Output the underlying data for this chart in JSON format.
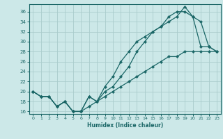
{
  "xlabel": "Humidex (Indice chaleur)",
  "bg_color": "#cce8e8",
  "grid_color": "#aacccc",
  "line_color": "#1a6666",
  "xlim": [
    -0.5,
    23.5
  ],
  "ylim": [
    15.5,
    37.5
  ],
  "yticks": [
    16,
    18,
    20,
    22,
    24,
    26,
    28,
    30,
    32,
    34,
    36
  ],
  "xticks": [
    0,
    1,
    2,
    3,
    4,
    5,
    6,
    7,
    8,
    9,
    10,
    11,
    12,
    13,
    14,
    15,
    16,
    17,
    18,
    19,
    20,
    21,
    22,
    23
  ],
  "line1_x": [
    0,
    1,
    2,
    3,
    4,
    5,
    6,
    7,
    8,
    9,
    10,
    11,
    12,
    13,
    14,
    15,
    16,
    17,
    18,
    19,
    20,
    21,
    22,
    23
  ],
  "line1_y": [
    20,
    19,
    19,
    17,
    18,
    16,
    16,
    19,
    18,
    20,
    21,
    23,
    25,
    28,
    30,
    32,
    33,
    35,
    36,
    36,
    35,
    29,
    29,
    28
  ],
  "line2_x": [
    0,
    1,
    2,
    3,
    4,
    5,
    6,
    7,
    8,
    9,
    10,
    11,
    12,
    13,
    14,
    15,
    16,
    17,
    18,
    19,
    20,
    21,
    22,
    23
  ],
  "line2_y": [
    20,
    19,
    19,
    17,
    18,
    16,
    16,
    19,
    18,
    21,
    23,
    26,
    28,
    30,
    31,
    32,
    33,
    34,
    35,
    37,
    35,
    34,
    29,
    28
  ],
  "line3_x": [
    0,
    1,
    2,
    3,
    4,
    5,
    6,
    7,
    8,
    9,
    10,
    11,
    12,
    13,
    14,
    15,
    16,
    17,
    18,
    19,
    20,
    21,
    22,
    23
  ],
  "line3_y": [
    20,
    19,
    19,
    17,
    18,
    16,
    16,
    17,
    18,
    19,
    20,
    21,
    22,
    23,
    24,
    25,
    26,
    27,
    27,
    28,
    28,
    28,
    28,
    28
  ]
}
